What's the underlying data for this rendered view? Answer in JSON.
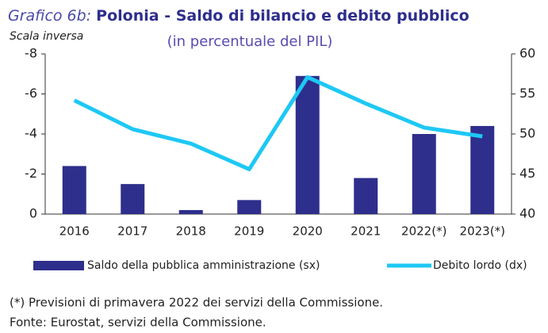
{
  "chart_data": {
    "type": "bar_line",
    "title_prefix": "Grafico 6b:",
    "title": "Polonia - Saldo di bilancio e debito pubblico",
    "subtitle": "(in percentuale del PIL)",
    "annotation": "Scala inversa",
    "categories": [
      "2016",
      "2017",
      "2018",
      "2019",
      "2020",
      "2021",
      "2022(*)",
      "2023(*)"
    ],
    "series": [
      {
        "name": "Saldo della pubblica amministrazione (sx)",
        "color": "#2e2e8c",
        "type": "bar",
        "values": [
          -2.4,
          -1.5,
          -0.2,
          -0.7,
          -6.9,
          -1.8,
          -4.0,
          -4.4
        ]
      },
      {
        "name": "Debito lordo (dx)",
        "color": "#1ec8f5",
        "type": "line",
        "axis": "y2",
        "values": [
          54.2,
          50.6,
          48.8,
          45.6,
          57.1,
          53.8,
          50.8,
          49.7
        ]
      }
    ],
    "ylim": [
      0,
      -8
    ],
    "yticks": [
      0,
      -2,
      -4,
      -6,
      -8
    ],
    "inverted": true,
    "y2lim": [
      40,
      60
    ],
    "y2ticks": [
      40,
      45,
      50,
      55,
      60
    ],
    "notes": [
      "(*) Previsioni di primavera 2022 dei servizi della Commissione.",
      "Fonte: Eurostat, servizi della Commissione."
    ]
  }
}
